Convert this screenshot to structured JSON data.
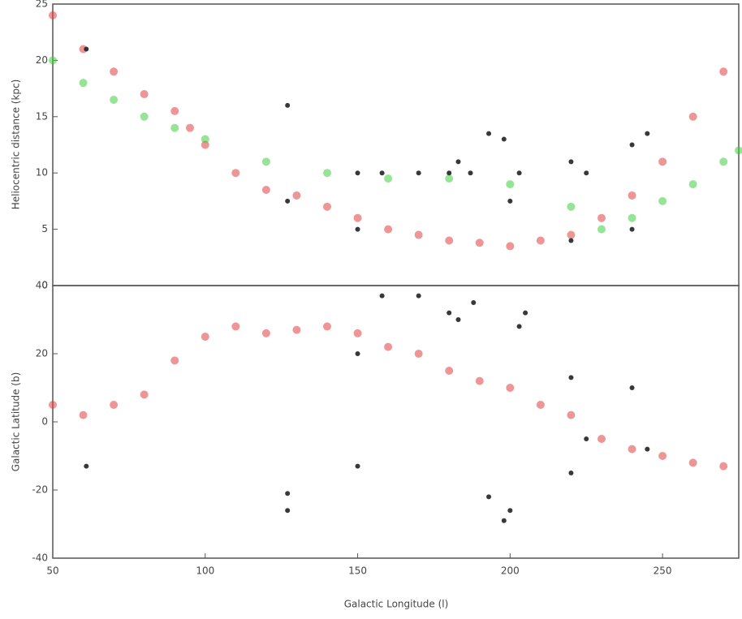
{
  "chart_data": [
    {
      "type": "scatter",
      "ylabel": "Heliocentric distance (kpc)",
      "xlim": [
        50,
        275
      ],
      "ylim": [
        0,
        25
      ],
      "yticks": [
        0,
        5,
        10,
        15,
        20,
        25
      ],
      "series": [
        {
          "color": "#e04040",
          "x": [
            50,
            60,
            70,
            80,
            90,
            95,
            100,
            110,
            120,
            130,
            140,
            150,
            160,
            170,
            180,
            190,
            200,
            210,
            220,
            230,
            240,
            250,
            260,
            270
          ],
          "values": [
            24,
            21,
            19,
            17,
            15.5,
            14,
            12.5,
            10,
            8.5,
            8,
            7,
            6,
            5,
            4.5,
            4,
            3.8,
            3.5,
            4,
            4.5,
            6,
            8,
            11,
            15,
            19
          ]
        },
        {
          "color": "#40d040",
          "x": [
            50,
            60,
            70,
            80,
            90,
            100,
            120,
            140,
            160,
            180,
            200,
            220,
            230,
            240,
            250,
            260,
            270,
            275
          ],
          "values": [
            20,
            18,
            16.5,
            15,
            14,
            13,
            11,
            10,
            9.5,
            9.5,
            9,
            7,
            5,
            6,
            7.5,
            9,
            11,
            12
          ]
        },
        {
          "color": "#222222",
          "x": [
            61,
            127,
            127,
            150,
            150,
            158,
            170,
            180,
            183,
            187,
            193,
            198,
            200,
            203,
            220,
            220,
            225,
            240,
            240,
            245
          ],
          "values": [
            21,
            16,
            7.5,
            10,
            5,
            10,
            10,
            10,
            11,
            10,
            13.5,
            13,
            7.5,
            10,
            4,
            11,
            10,
            12.5,
            5,
            13.5
          ]
        }
      ]
    },
    {
      "type": "scatter",
      "ylabel": "Galactic Latitude (b)",
      "xlabel": "Galactic Longitude (l)",
      "xlim": [
        50,
        275
      ],
      "xticks": [
        50,
        100,
        150,
        200,
        250
      ],
      "ylim": [
        -40,
        40
      ],
      "yticks": [
        -40,
        -20,
        0,
        20,
        40
      ],
      "series": [
        {
          "color": "#e04040",
          "x": [
            50,
            60,
            70,
            80,
            90,
            100,
            110,
            120,
            130,
            140,
            150,
            160,
            170,
            180,
            190,
            200,
            210,
            220,
            230,
            240,
            250,
            260,
            270
          ],
          "values": [
            5,
            2,
            5,
            8,
            18,
            25,
            28,
            26,
            27,
            28,
            26,
            22,
            20,
            15,
            12,
            10,
            5,
            2,
            -5,
            -8,
            -10,
            -12,
            -13
          ]
        },
        {
          "color": "#222222",
          "x": [
            61,
            127,
            127,
            150,
            150,
            158,
            170,
            180,
            183,
            188,
            193,
            198,
            200,
            203,
            205,
            220,
            220,
            225,
            240,
            245
          ],
          "values": [
            -13,
            -21,
            -26,
            20,
            -13,
            37,
            37,
            32,
            30,
            35,
            -22,
            -29,
            -26,
            28,
            32,
            -15,
            13,
            -5,
            10,
            -8
          ]
        }
      ]
    }
  ]
}
